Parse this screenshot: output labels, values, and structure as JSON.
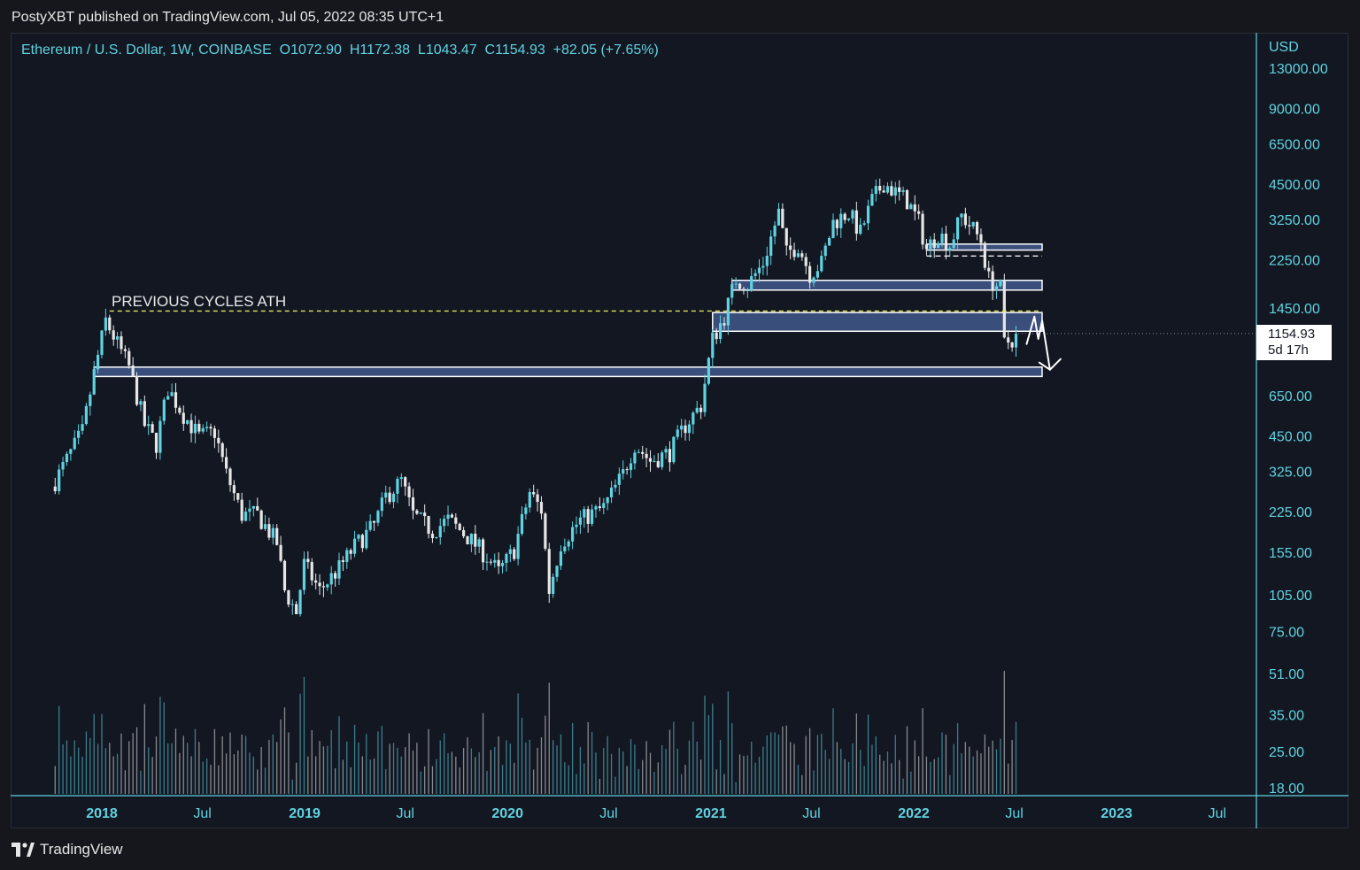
{
  "header": {
    "publisher": "PostyXBT published on TradingView.com, Jul 05, 2022 08:35 UTC+1"
  },
  "footer": {
    "brand": "TradingView"
  },
  "colors": {
    "background": "#131722",
    "up": "#5fd3e1",
    "down": "#e6e6e6",
    "zone_fill": "#5b7cc4",
    "ath_line": "#e3e35a",
    "axis_text": "#5fd3e1"
  },
  "chart_data": {
    "type": "candlestick",
    "symbol_line": {
      "symbol": "Ethereum / U.S. Dollar, 1W, COINBASE",
      "open": "O1072.90",
      "high": "H1172.38",
      "low": "L1043.47",
      "close": "C1154.93",
      "change": "+82.05 (+7.65%)"
    },
    "currency": "USD",
    "y_scale": "log",
    "y_ticks": [
      "13000.00",
      "9000.00",
      "6500.00",
      "4500.00",
      "3250.00",
      "2250.00",
      "1450.00",
      "650.00",
      "450.00",
      "325.00",
      "225.00",
      "155.00",
      "105.00",
      "75.00",
      "51.00",
      "35.00",
      "25.00",
      "18.00"
    ],
    "y_tick_values": [
      13000,
      9000,
      6500,
      4500,
      3250,
      2250,
      1450,
      650,
      450,
      325,
      225,
      155,
      105,
      75,
      51,
      35,
      25,
      18
    ],
    "x_ticks": [
      {
        "label": "2018",
        "date": "2018-01-01",
        "bold": true
      },
      {
        "label": "Jul",
        "date": "2018-07-01",
        "bold": false
      },
      {
        "label": "2019",
        "date": "2019-01-01",
        "bold": true
      },
      {
        "label": "Jul",
        "date": "2019-07-01",
        "bold": false
      },
      {
        "label": "2020",
        "date": "2020-01-01",
        "bold": true
      },
      {
        "label": "Jul",
        "date": "2020-07-01",
        "bold": false
      },
      {
        "label": "2021",
        "date": "2021-01-01",
        "bold": true
      },
      {
        "label": "Jul",
        "date": "2021-07-01",
        "bold": false
      },
      {
        "label": "2022",
        "date": "2022-01-01",
        "bold": true
      },
      {
        "label": "Jul",
        "date": "2022-07-01",
        "bold": false
      },
      {
        "label": "2023",
        "date": "2023-01-01",
        "bold": true
      },
      {
        "label": "Jul",
        "date": "2023-07-01",
        "bold": false
      }
    ],
    "last_price": "1154.93",
    "countdown": "5d 17h",
    "price_path": [
      [
        "2017-10-09",
        300
      ],
      [
        "2017-11-27",
        470
      ],
      [
        "2017-12-18",
        800
      ],
      [
        "2018-01-08",
        1300
      ],
      [
        "2018-01-29",
        1050
      ],
      [
        "2018-02-19",
        850
      ],
      [
        "2018-03-19",
        500
      ],
      [
        "2018-04-09",
        420
      ],
      [
        "2018-04-30",
        700
      ],
      [
        "2018-05-28",
        550
      ],
      [
        "2018-06-25",
        450
      ],
      [
        "2018-07-23",
        470
      ],
      [
        "2018-08-13",
        320
      ],
      [
        "2018-09-10",
        220
      ],
      [
        "2018-10-08",
        220
      ],
      [
        "2018-11-12",
        170
      ],
      [
        "2018-11-26",
        110
      ],
      [
        "2018-12-17",
        90
      ],
      [
        "2018-12-31",
        140
      ],
      [
        "2019-01-28",
        110
      ],
      [
        "2019-03-04",
        135
      ],
      [
        "2019-04-01",
        165
      ],
      [
        "2019-05-06",
        200
      ],
      [
        "2019-05-27",
        260
      ],
      [
        "2019-06-24",
        300
      ],
      [
        "2019-07-15",
        220
      ],
      [
        "2019-08-19",
        190
      ],
      [
        "2019-09-16",
        210
      ],
      [
        "2019-10-21",
        180
      ],
      [
        "2019-11-25",
        150
      ],
      [
        "2019-12-16",
        130
      ],
      [
        "2020-01-13",
        160
      ],
      [
        "2020-02-10",
        270
      ],
      [
        "2020-03-02",
        230
      ],
      [
        "2020-03-16",
        110
      ],
      [
        "2020-04-06",
        170
      ],
      [
        "2020-05-11",
        210
      ],
      [
        "2020-06-22",
        235
      ],
      [
        "2020-07-27",
        320
      ],
      [
        "2020-08-17",
        420
      ],
      [
        "2020-09-14",
        360
      ],
      [
        "2020-10-19",
        390
      ],
      [
        "2020-11-16",
        500
      ],
      [
        "2020-12-14",
        600
      ],
      [
        "2021-01-04",
        1100
      ],
      [
        "2021-01-25",
        1350
      ],
      [
        "2021-02-15",
        1900
      ],
      [
        "2021-03-08",
        1800
      ],
      [
        "2021-04-05",
        2200
      ],
      [
        "2021-05-03",
        3500
      ],
      [
        "2021-05-17",
        2400
      ],
      [
        "2021-06-07",
        2600
      ],
      [
        "2021-06-28",
        2000
      ],
      [
        "2021-07-19",
        2200
      ],
      [
        "2021-08-09",
        3200
      ],
      [
        "2021-09-06",
        3500
      ],
      [
        "2021-09-27",
        2900
      ],
      [
        "2021-10-18",
        3900
      ],
      [
        "2021-11-08",
        4600
      ],
      [
        "2021-11-29",
        4200
      ],
      [
        "2021-12-20",
        3900
      ],
      [
        "2022-01-10",
        3200
      ],
      [
        "2022-01-24",
        2500
      ],
      [
        "2022-02-14",
        2900
      ],
      [
        "2022-03-07",
        2600
      ],
      [
        "2022-03-28",
        3400
      ],
      [
        "2022-04-18",
        3000
      ],
      [
        "2022-05-02",
        2700
      ],
      [
        "2022-05-16",
        1900
      ],
      [
        "2022-06-06",
        1750
      ],
      [
        "2022-06-13",
        1050
      ],
      [
        "2022-06-27",
        1100
      ],
      [
        "2022-07-04",
        1154.93
      ]
    ],
    "volume_hint": "lower panel shows weekly volume bars coloured by candle direction",
    "annotations": {
      "ath_label": "PREVIOUS CYCLES ATH",
      "ath_price": 1420,
      "ath_start": "2018-01-15",
      "ath_end": "2022-08-20",
      "zones": [
        {
          "low": 780,
          "high": 850,
          "start": "2017-12-18",
          "end": "2022-08-20"
        },
        {
          "low": 1180,
          "high": 1400,
          "start": "2021-01-04",
          "end": "2022-08-20"
        },
        {
          "low": 1720,
          "high": 1880,
          "start": "2021-02-08",
          "end": "2022-08-20"
        },
        {
          "low": 2480,
          "high": 2620,
          "start": "2022-01-24",
          "end": "2022-08-20"
        }
      ],
      "dashed_level": {
        "price": 2350,
        "start": "2022-01-24",
        "end": "2022-08-20"
      },
      "projection": [
        [
          "2022-07-04",
          1050
        ],
        [
          "2022-07-18",
          1350
        ],
        [
          "2022-07-25",
          1100
        ],
        [
          "2022-08-01",
          1300
        ],
        [
          "2022-08-15",
          830
        ]
      ]
    }
  }
}
